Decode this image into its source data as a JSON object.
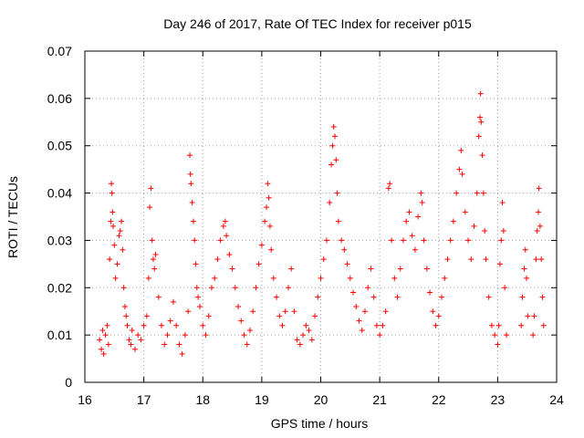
{
  "chart_data": {
    "type": "scatter",
    "title": "Day 246 of 2017, Rate Of TEC Index for receiver p015",
    "xlabel": "GPS time / hours",
    "ylabel": "ROTI / TECUs",
    "xlim": [
      16,
      24
    ],
    "ylim": [
      0,
      0.07
    ],
    "x_ticks": [
      "16",
      "17",
      "18",
      "19",
      "20",
      "21",
      "22",
      "23",
      "24"
    ],
    "y_ticks": [
      "0",
      "0.01",
      "0.02",
      "0.03",
      "0.04",
      "0.05",
      "0.06",
      "0.07"
    ],
    "x_tick_values": [
      16,
      17,
      18,
      19,
      20,
      21,
      22,
      23,
      24
    ],
    "y_tick_values": [
      0,
      0.01,
      0.02,
      0.03,
      0.04,
      0.05,
      0.06,
      0.07
    ],
    "grid": true,
    "marker": "+",
    "color": "#ff0000",
    "series": [
      {
        "name": "ROTI",
        "points": [
          [
            16.25,
            0.009
          ],
          [
            16.28,
            0.007
          ],
          [
            16.3,
            0.011
          ],
          [
            16.32,
            0.006
          ],
          [
            16.35,
            0.01
          ],
          [
            16.38,
            0.012
          ],
          [
            16.4,
            0.008
          ],
          [
            16.42,
            0.026
          ],
          [
            16.44,
            0.034
          ],
          [
            16.45,
            0.042
          ],
          [
            16.46,
            0.04
          ],
          [
            16.47,
            0.036
          ],
          [
            16.48,
            0.033
          ],
          [
            16.5,
            0.029
          ],
          [
            16.52,
            0.022
          ],
          [
            16.55,
            0.025
          ],
          [
            16.58,
            0.031
          ],
          [
            16.6,
            0.032
          ],
          [
            16.62,
            0.034
          ],
          [
            16.64,
            0.028
          ],
          [
            16.66,
            0.02
          ],
          [
            16.68,
            0.016
          ],
          [
            16.7,
            0.014
          ],
          [
            16.72,
            0.012
          ],
          [
            16.75,
            0.009
          ],
          [
            16.78,
            0.008
          ],
          [
            16.8,
            0.011
          ],
          [
            16.85,
            0.007
          ],
          [
            16.9,
            0.01
          ],
          [
            16.95,
            0.009
          ],
          [
            17.0,
            0.012
          ],
          [
            17.05,
            0.014
          ],
          [
            17.08,
            0.022
          ],
          [
            17.1,
            0.037
          ],
          [
            17.12,
            0.041
          ],
          [
            17.14,
            0.03
          ],
          [
            17.16,
            0.026
          ],
          [
            17.18,
            0.024
          ],
          [
            17.2,
            0.027
          ],
          [
            17.25,
            0.018
          ],
          [
            17.3,
            0.012
          ],
          [
            17.35,
            0.008
          ],
          [
            17.4,
            0.01
          ],
          [
            17.45,
            0.013
          ],
          [
            17.5,
            0.017
          ],
          [
            17.55,
            0.012
          ],
          [
            17.6,
            0.008
          ],
          [
            17.65,
            0.006
          ],
          [
            17.7,
            0.01
          ],
          [
            17.75,
            0.015
          ],
          [
            17.78,
            0.048
          ],
          [
            17.79,
            0.044
          ],
          [
            17.8,
            0.042
          ],
          [
            17.82,
            0.038
          ],
          [
            17.84,
            0.034
          ],
          [
            17.86,
            0.03
          ],
          [
            17.88,
            0.025
          ],
          [
            17.9,
            0.02
          ],
          [
            17.92,
            0.018
          ],
          [
            17.95,
            0.016
          ],
          [
            18.0,
            0.012
          ],
          [
            18.05,
            0.01
          ],
          [
            18.1,
            0.014
          ],
          [
            18.15,
            0.02
          ],
          [
            18.2,
            0.022
          ],
          [
            18.25,
            0.026
          ],
          [
            18.3,
            0.03
          ],
          [
            18.35,
            0.033
          ],
          [
            18.38,
            0.034
          ],
          [
            18.4,
            0.031
          ],
          [
            18.45,
            0.027
          ],
          [
            18.5,
            0.024
          ],
          [
            18.55,
            0.02
          ],
          [
            18.6,
            0.016
          ],
          [
            18.65,
            0.013
          ],
          [
            18.7,
            0.01
          ],
          [
            18.75,
            0.008
          ],
          [
            18.8,
            0.011
          ],
          [
            18.85,
            0.015
          ],
          [
            18.9,
            0.02
          ],
          [
            18.95,
            0.025
          ],
          [
            19.0,
            0.029
          ],
          [
            19.05,
            0.034
          ],
          [
            19.08,
            0.037
          ],
          [
            19.1,
            0.042
          ],
          [
            19.12,
            0.039
          ],
          [
            19.14,
            0.033
          ],
          [
            19.16,
            0.028
          ],
          [
            19.2,
            0.022
          ],
          [
            19.25,
            0.018
          ],
          [
            19.3,
            0.014
          ],
          [
            19.35,
            0.012
          ],
          [
            19.4,
            0.015
          ],
          [
            19.45,
            0.02
          ],
          [
            19.5,
            0.024
          ],
          [
            19.55,
            0.015
          ],
          [
            19.6,
            0.009
          ],
          [
            19.65,
            0.008
          ],
          [
            19.7,
            0.01
          ],
          [
            19.75,
            0.012
          ],
          [
            19.8,
            0.011
          ],
          [
            19.85,
            0.009
          ],
          [
            19.9,
            0.014
          ],
          [
            19.95,
            0.018
          ],
          [
            20.0,
            0.022
          ],
          [
            20.05,
            0.026
          ],
          [
            20.1,
            0.03
          ],
          [
            20.15,
            0.038
          ],
          [
            20.18,
            0.046
          ],
          [
            20.2,
            0.05
          ],
          [
            20.22,
            0.054
          ],
          [
            20.24,
            0.052
          ],
          [
            20.26,
            0.047
          ],
          [
            20.28,
            0.04
          ],
          [
            20.3,
            0.034
          ],
          [
            20.35,
            0.03
          ],
          [
            20.4,
            0.028
          ],
          [
            20.45,
            0.025
          ],
          [
            20.5,
            0.022
          ],
          [
            20.55,
            0.019
          ],
          [
            20.6,
            0.016
          ],
          [
            20.65,
            0.013
          ],
          [
            20.7,
            0.011
          ],
          [
            20.75,
            0.015
          ],
          [
            20.8,
            0.02
          ],
          [
            20.85,
            0.024
          ],
          [
            20.9,
            0.018
          ],
          [
            20.95,
            0.012
          ],
          [
            21.0,
            0.01
          ],
          [
            21.05,
            0.012
          ],
          [
            21.1,
            0.015
          ],
          [
            21.15,
            0.041
          ],
          [
            21.17,
            0.042
          ],
          [
            21.2,
            0.03
          ],
          [
            21.25,
            0.022
          ],
          [
            21.3,
            0.018
          ],
          [
            21.35,
            0.024
          ],
          [
            21.4,
            0.03
          ],
          [
            21.45,
            0.034
          ],
          [
            21.5,
            0.036
          ],
          [
            21.55,
            0.031
          ],
          [
            21.6,
            0.028
          ],
          [
            21.65,
            0.035
          ],
          [
            21.7,
            0.04
          ],
          [
            21.72,
            0.038
          ],
          [
            21.75,
            0.03
          ],
          [
            21.8,
            0.024
          ],
          [
            21.85,
            0.019
          ],
          [
            21.9,
            0.015
          ],
          [
            21.95,
            0.012
          ],
          [
            22.0,
            0.014
          ],
          [
            22.05,
            0.018
          ],
          [
            22.1,
            0.022
          ],
          [
            22.15,
            0.026
          ],
          [
            22.2,
            0.03
          ],
          [
            22.25,
            0.034
          ],
          [
            22.3,
            0.04
          ],
          [
            22.35,
            0.045
          ],
          [
            22.38,
            0.049
          ],
          [
            22.4,
            0.044
          ],
          [
            22.45,
            0.036
          ],
          [
            22.5,
            0.03
          ],
          [
            22.55,
            0.026
          ],
          [
            22.6,
            0.033
          ],
          [
            22.65,
            0.04
          ],
          [
            22.68,
            0.052
          ],
          [
            22.7,
            0.056
          ],
          [
            22.71,
            0.061
          ],
          [
            22.72,
            0.055
          ],
          [
            22.74,
            0.048
          ],
          [
            22.76,
            0.04
          ],
          [
            22.78,
            0.032
          ],
          [
            22.8,
            0.026
          ],
          [
            22.85,
            0.018
          ],
          [
            22.9,
            0.012
          ],
          [
            22.95,
            0.01
          ],
          [
            23.0,
            0.008
          ],
          [
            23.02,
            0.012
          ],
          [
            23.04,
            0.025
          ],
          [
            23.06,
            0.03
          ],
          [
            23.08,
            0.038
          ],
          [
            23.1,
            0.032
          ],
          [
            23.12,
            0.02
          ],
          [
            23.15,
            0.01
          ],
          [
            23.4,
            0.012
          ],
          [
            23.42,
            0.018
          ],
          [
            23.45,
            0.024
          ],
          [
            23.47,
            0.028
          ],
          [
            23.49,
            0.022
          ],
          [
            23.51,
            0.014
          ],
          [
            23.6,
            0.01
          ],
          [
            23.62,
            0.014
          ],
          [
            23.65,
            0.026
          ],
          [
            23.67,
            0.032
          ],
          [
            23.69,
            0.036
          ],
          [
            23.7,
            0.041
          ],
          [
            23.72,
            0.033
          ],
          [
            23.74,
            0.026
          ],
          [
            23.76,
            0.018
          ],
          [
            23.78,
            0.012
          ]
        ]
      }
    ]
  }
}
